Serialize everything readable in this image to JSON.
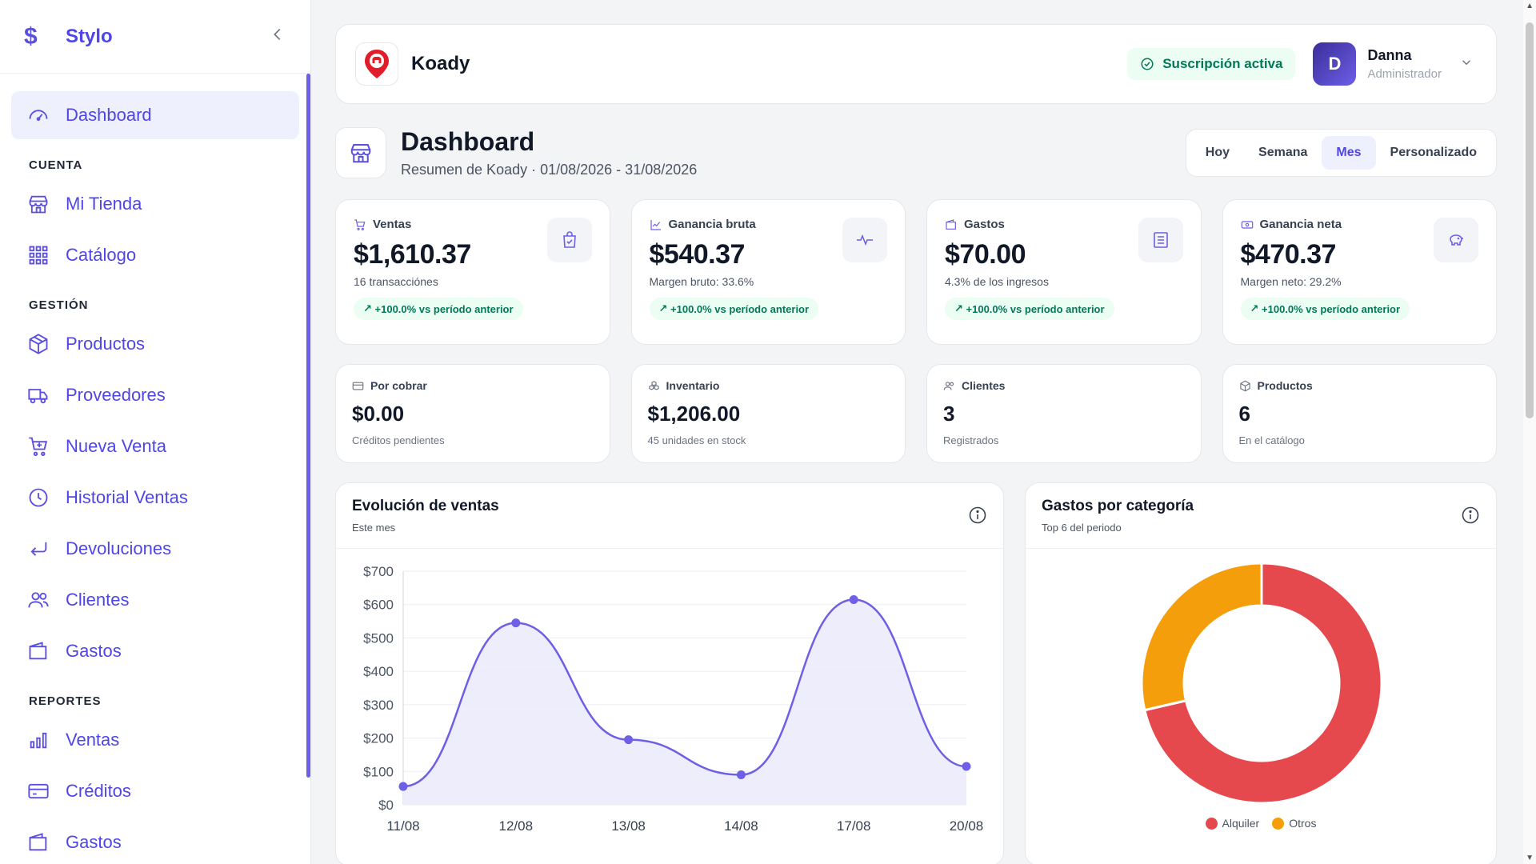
{
  "brand": {
    "name": "Stylo",
    "logo": "$"
  },
  "sidebar": {
    "dashboard": "Dashboard",
    "sections": {
      "cuenta": "CUENTA",
      "gestion": "GESTIÓN",
      "reportes": "REPORTES"
    },
    "cuenta_items": [
      "Mi Tienda",
      "Catálogo"
    ],
    "gestion_items": [
      "Productos",
      "Proveedores",
      "Nueva Venta",
      "Historial Ventas",
      "Devoluciones",
      "Clientes",
      "Gastos"
    ],
    "reportes_items": [
      "Ventas",
      "Créditos",
      "Gastos"
    ]
  },
  "topbar": {
    "store_name": "Koady",
    "subscription": "Suscripción activa",
    "user": {
      "initial": "D",
      "name": "Danna",
      "role": "Administrador"
    }
  },
  "header": {
    "title": "Dashboard",
    "subtitle": "Resumen de Koady · 01/08/2026 - 31/08/2026",
    "ranges": [
      "Hoy",
      "Semana",
      "Mes",
      "Personalizado"
    ],
    "active_range": "Mes"
  },
  "stats": [
    {
      "label": "Ventas",
      "value": "$1,610.37",
      "sub": "16 transacciónes",
      "trend": "+100.0% vs período anterior",
      "icon": "cart-icon",
      "badge_icon": "shopping-bag-icon"
    },
    {
      "label": "Ganancia bruta",
      "value": "$540.37",
      "sub": "Margen bruto: 33.6%",
      "trend": "+100.0% vs período anterior",
      "icon": "trending-up-icon",
      "badge_icon": "pulse-icon"
    },
    {
      "label": "Gastos",
      "value": "$70.00",
      "sub": "4.3% de los ingresos",
      "trend": "+100.0% vs período anterior",
      "icon": "wallet-icon",
      "badge_icon": "receipt-icon"
    },
    {
      "label": "Ganancia neta",
      "value": "$470.37",
      "sub": "Margen neto: 29.2%",
      "trend": "+100.0% vs período anterior",
      "icon": "cash-icon",
      "badge_icon": "piggy-bank-icon"
    }
  ],
  "mini_stats": [
    {
      "label": "Por cobrar",
      "value": "$0.00",
      "sub": "Créditos pendientes",
      "icon": "credit-card-icon"
    },
    {
      "label": "Inventario",
      "value": "$1,206.00",
      "sub": "45 unidades en stock",
      "icon": "boxes-icon"
    },
    {
      "label": "Clientes",
      "value": "3",
      "sub": "Registrados",
      "icon": "users-icon"
    },
    {
      "label": "Productos",
      "value": "6",
      "sub": "En el catálogo",
      "icon": "package-icon"
    }
  ],
  "sales_chart": {
    "title": "Evolución de ventas",
    "subtitle": "Este mes"
  },
  "expenses_chart": {
    "title": "Gastos por categoría",
    "subtitle": "Top 6 del periodo"
  },
  "colors": {
    "accent": "#5b4fe0",
    "alquiler": "#e5484d",
    "otros": "#f59e0b",
    "positive": "#047857"
  },
  "chart_data": [
    {
      "type": "area",
      "title": "Evolución de ventas",
      "categories": [
        "11/08",
        "12/08",
        "13/08",
        "14/08",
        "17/08",
        "20/08"
      ],
      "values": [
        55,
        545,
        195,
        90,
        615,
        115
      ],
      "ylim": [
        0,
        700
      ],
      "yticks": [
        "$0",
        "$100",
        "$200",
        "$300",
        "$400",
        "$500",
        "$600",
        "$700"
      ],
      "grid": true
    },
    {
      "type": "pie",
      "title": "Gastos por categoría",
      "labels": [
        "Alquiler",
        "Otros"
      ],
      "values": [
        71.4,
        28.6
      ],
      "colors": [
        "#e5484d",
        "#f59e0b"
      ],
      "legend": "bottom"
    }
  ]
}
